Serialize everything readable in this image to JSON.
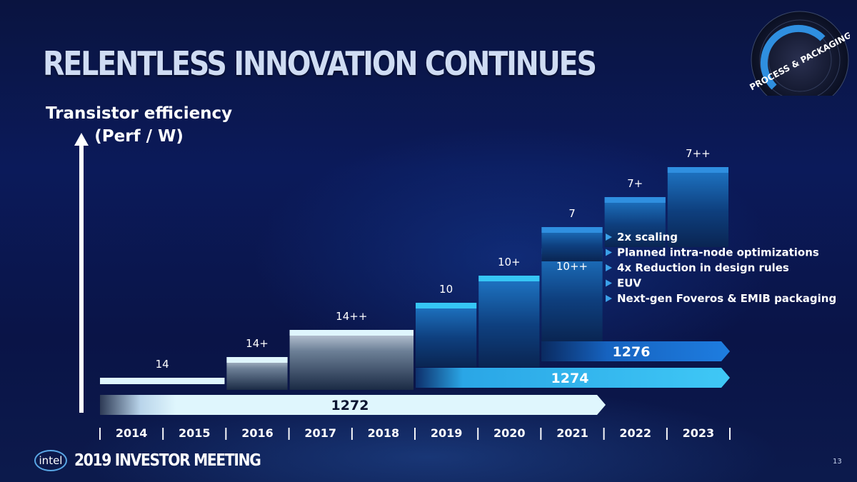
{
  "title": "RELENTLESS INNOVATION CONTINUES",
  "badge": {
    "text": "PROCESS & PACKAGING"
  },
  "footer": {
    "logo_text": "intel",
    "event": "2019 INVESTOR MEETING",
    "page_number": "13"
  },
  "colors": {
    "light_blue": "#d6f3fd",
    "cyan": "#36c6f4",
    "mid_blue": "#1f86d8",
    "deep_blue": "#0f5fb8",
    "accent": "#3aa0e8"
  },
  "chart_data": {
    "type": "bar",
    "ylabel_line1": "Transistor efficiency",
    "ylabel_line2": "(Perf / W)",
    "years": [
      "2014",
      "2015",
      "2016",
      "2017",
      "2018",
      "2019",
      "2020",
      "2021",
      "2022",
      "2023"
    ],
    "nodes": [
      {
        "label": "14",
        "start": "2014",
        "end": "2015",
        "level": 1
      },
      {
        "label": "14+",
        "start": "2016",
        "end": "2016",
        "level": 2
      },
      {
        "label": "14++",
        "start": "2017",
        "end": "2018",
        "level": 3
      },
      {
        "label": "10",
        "start": "2019",
        "end": "2019",
        "level": 4
      },
      {
        "label": "10+",
        "start": "2020",
        "end": "2020",
        "level": 5
      },
      {
        "label": "10++",
        "start": "2021",
        "end": "2021",
        "level": 6
      },
      {
        "label": "7",
        "start": "2021",
        "end": "2021",
        "level": 7
      },
      {
        "label": "7+",
        "start": "2022",
        "end": "2022",
        "level": 8
      },
      {
        "label": "7++",
        "start": "2023",
        "end": "2023",
        "level": 9
      }
    ],
    "process_arrows": [
      {
        "label": "1272",
        "start": "2014",
        "end": "2021"
      },
      {
        "label": "1274",
        "start": "2019",
        "end": "2023"
      },
      {
        "label": "1276",
        "start": "2021",
        "end": "2023"
      }
    ],
    "features": [
      "2x scaling",
      "Planned intra-node optimizations",
      "4x Reduction in design rules",
      "EUV",
      "Next-gen Foveros & EMIB packaging"
    ]
  }
}
